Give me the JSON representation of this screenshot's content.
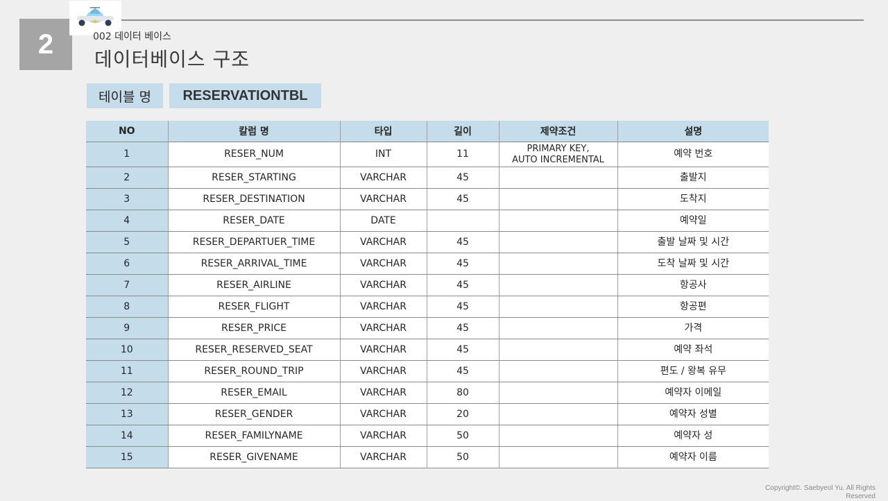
{
  "slide": {
    "number": "2",
    "subtitle": "002 데이터 베이스",
    "title": "데이터베이스 구조",
    "table_label": "테이블 명",
    "table_name": "RESERVATIONTBL",
    "copyright": "Copyright©. Saebyeol Yu. All Rights Reserved"
  },
  "table": {
    "headers": [
      "NO",
      "칼럼 명",
      "타입",
      "길이",
      "제약조건",
      "설명"
    ],
    "rows": [
      [
        "1",
        "RESER_NUM",
        "INT",
        "11",
        "PRIMARY KEY,\nAUTO INCREMENTAL",
        "예약 번호"
      ],
      [
        "2",
        "RESER_STARTING",
        "VARCHAR",
        "45",
        "",
        "출발지"
      ],
      [
        "3",
        "RESER_DESTINATION",
        "VARCHAR",
        "45",
        "",
        "도착지"
      ],
      [
        "4",
        "RESER_DATE",
        "DATE",
        "",
        "",
        "예약일"
      ],
      [
        "5",
        "RESER_DEPARTUER_TIME",
        "VARCHAR",
        "45",
        "",
        "출발 날짜 및 시간"
      ],
      [
        "6",
        "RESER_ARRIVAL_TIME",
        "VARCHAR",
        "45",
        "",
        "도착 날짜 및 시간"
      ],
      [
        "7",
        "RESER_AIRLINE",
        "VARCHAR",
        "45",
        "",
        "항공사"
      ],
      [
        "8",
        "RESER_FLIGHT",
        "VARCHAR",
        "45",
        "",
        "항공편"
      ],
      [
        "9",
        "RESER_PRICE",
        "VARCHAR",
        "45",
        "",
        "가격"
      ],
      [
        "10",
        "RESER_RESERVED_SEAT",
        "VARCHAR",
        "45",
        "",
        "예약 좌석"
      ],
      [
        "11",
        "RESER_ROUND_TRIP",
        "VARCHAR",
        "45",
        "",
        "편도 / 왕복 유무"
      ],
      [
        "12",
        "RESER_EMAIL",
        "VARCHAR",
        "80",
        "",
        "예약자 이메일"
      ],
      [
        "13",
        "RESER_GENDER",
        "VARCHAR",
        "20",
        "",
        "예약자 성별"
      ],
      [
        "14",
        "RESER_FAMILYNAME",
        "VARCHAR",
        "50",
        "",
        "예약자 성"
      ],
      [
        "15",
        "RESER_GIVENAME",
        "VARCHAR",
        "50",
        "",
        "예약자 이름"
      ]
    ]
  },
  "colors": {
    "accent_blue": "#c5dcea",
    "number_box": "#a5a5a5",
    "background": "#efefef"
  },
  "icons": [
    "airplane-icon"
  ]
}
